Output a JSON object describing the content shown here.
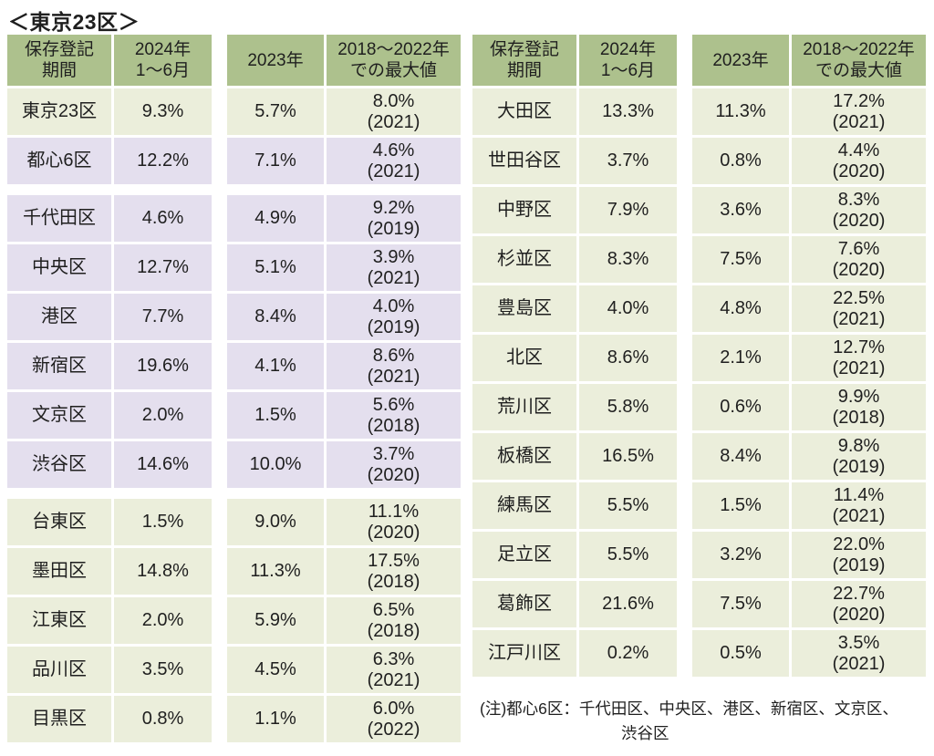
{
  "page": {
    "title": "＜東京23区＞"
  },
  "colors": {
    "header_bg": "#ADC18D",
    "row_green": "#EBEEDB",
    "row_purple": "#E4DFEE",
    "text": "#1f1f1f",
    "background": "#ffffff"
  },
  "headers": [
    "保存登記\n期間",
    "2024年\n1～6月",
    "2023年",
    "2018～2022年\nでの最大値"
  ],
  "tables": [
    {
      "side": "left",
      "rows": [
        {
          "region": "東京23区",
          "v2024": "9.3%",
          "v2023": "5.7%",
          "max_pct": "8.0%",
          "max_year": "(2021)",
          "tint": "green",
          "gap_after": false
        },
        {
          "region": "都心6区",
          "v2024": "12.2%",
          "v2023": "7.1%",
          "max_pct": "4.6%",
          "max_year": "(2021)",
          "tint": "purple",
          "gap_after": true
        },
        {
          "region": "千代田区",
          "v2024": "4.6%",
          "v2023": "4.9%",
          "max_pct": "9.2%",
          "max_year": "(2019)",
          "tint": "purple",
          "gap_after": false
        },
        {
          "region": "中央区",
          "v2024": "12.7%",
          "v2023": "5.1%",
          "max_pct": "3.9%",
          "max_year": "(2021)",
          "tint": "purple",
          "gap_after": false
        },
        {
          "region": "港区",
          "v2024": "7.7%",
          "v2023": "8.4%",
          "max_pct": "4.0%",
          "max_year": "(2019)",
          "tint": "purple",
          "gap_after": false
        },
        {
          "region": "新宿区",
          "v2024": "19.6%",
          "v2023": "4.1%",
          "max_pct": "8.6%",
          "max_year": "(2021)",
          "tint": "purple",
          "gap_after": false
        },
        {
          "region": "文京区",
          "v2024": "2.0%",
          "v2023": "1.5%",
          "max_pct": "5.6%",
          "max_year": "(2018)",
          "tint": "purple",
          "gap_after": false
        },
        {
          "region": "渋谷区",
          "v2024": "14.6%",
          "v2023": "10.0%",
          "max_pct": "3.7%",
          "max_year": "(2020)",
          "tint": "purple",
          "gap_after": true
        },
        {
          "region": "台東区",
          "v2024": "1.5%",
          "v2023": "9.0%",
          "max_pct": "11.1%",
          "max_year": "(2020)",
          "tint": "green",
          "gap_after": false
        },
        {
          "region": "墨田区",
          "v2024": "14.8%",
          "v2023": "11.3%",
          "max_pct": "17.5%",
          "max_year": "(2018)",
          "tint": "green",
          "gap_after": false
        },
        {
          "region": "江東区",
          "v2024": "2.0%",
          "v2023": "5.9%",
          "max_pct": "6.5%",
          "max_year": "(2018)",
          "tint": "green",
          "gap_after": false
        },
        {
          "region": "品川区",
          "v2024": "3.5%",
          "v2023": "4.5%",
          "max_pct": "6.3%",
          "max_year": "(2021)",
          "tint": "green",
          "gap_after": false
        },
        {
          "region": "目黒区",
          "v2024": "0.8%",
          "v2023": "1.1%",
          "max_pct": "6.0%",
          "max_year": "(2022)",
          "tint": "green",
          "gap_after": false
        }
      ]
    },
    {
      "side": "right",
      "rows": [
        {
          "region": "大田区",
          "v2024": "13.3%",
          "v2023": "11.3%",
          "max_pct": "17.2%",
          "max_year": "(2021)",
          "tint": "green",
          "gap_after": false
        },
        {
          "region": "世田谷区",
          "v2024": "3.7%",
          "v2023": "0.8%",
          "max_pct": "4.4%",
          "max_year": "(2020)",
          "tint": "green",
          "gap_after": false
        },
        {
          "region": "中野区",
          "v2024": "7.9%",
          "v2023": "3.6%",
          "max_pct": "8.3%",
          "max_year": "(2020)",
          "tint": "green",
          "gap_after": false
        },
        {
          "region": "杉並区",
          "v2024": "8.3%",
          "v2023": "7.5%",
          "max_pct": "7.6%",
          "max_year": "(2020)",
          "tint": "green",
          "gap_after": false
        },
        {
          "region": "豊島区",
          "v2024": "4.0%",
          "v2023": "4.8%",
          "max_pct": "22.5%",
          "max_year": "(2021)",
          "tint": "green",
          "gap_after": false
        },
        {
          "region": "北区",
          "v2024": "8.6%",
          "v2023": "2.1%",
          "max_pct": "12.7%",
          "max_year": "(2021)",
          "tint": "green",
          "gap_after": false
        },
        {
          "region": "荒川区",
          "v2024": "5.8%",
          "v2023": "0.6%",
          "max_pct": "9.9%",
          "max_year": "(2018)",
          "tint": "green",
          "gap_after": false
        },
        {
          "region": "板橋区",
          "v2024": "16.5%",
          "v2023": "8.4%",
          "max_pct": "9.8%",
          "max_year": "(2019)",
          "tint": "green",
          "gap_after": false
        },
        {
          "region": "練馬区",
          "v2024": "5.5%",
          "v2023": "1.5%",
          "max_pct": "11.4%",
          "max_year": "(2021)",
          "tint": "green",
          "gap_after": false
        },
        {
          "region": "足立区",
          "v2024": "5.5%",
          "v2023": "3.2%",
          "max_pct": "22.0%",
          "max_year": "(2019)",
          "tint": "green",
          "gap_after": false
        },
        {
          "region": "葛飾区",
          "v2024": "21.6%",
          "v2023": "7.5%",
          "max_pct": "22.7%",
          "max_year": "(2020)",
          "tint": "green",
          "gap_after": false
        },
        {
          "region": "江戸川区",
          "v2024": "0.2%",
          "v2023": "0.5%",
          "max_pct": "3.5%",
          "max_year": "(2021)",
          "tint": "green",
          "gap_after": false
        }
      ]
    }
  ],
  "note": {
    "lines": [
      "(注)都心6区：千代田区、中央区、港区、新宿区、文京区、",
      "渋谷区"
    ]
  }
}
